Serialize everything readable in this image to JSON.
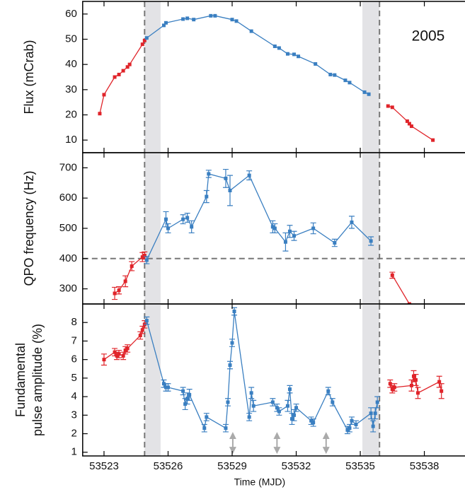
{
  "chart_data": [
    {
      "type": "line",
      "ylabel": [
        "Flux (mCrab)"
      ],
      "annotation": "2005",
      "xlim": [
        53522,
        53540
      ],
      "xticks": [
        53523,
        53526,
        53529,
        53532,
        53535,
        53538
      ],
      "ylim": [
        5,
        65
      ],
      "yticks": [
        10,
        20,
        30,
        40,
        50,
        60
      ],
      "dashed_x": [
        53524.9,
        53535.9
      ],
      "shaded": [
        [
          53524.9,
          53525.65
        ],
        [
          53535.1,
          53535.9
        ]
      ],
      "series": [
        {
          "color": "#e0242a",
          "x": [
            53522.8,
            53523,
            53523.5,
            53523.7,
            53523.9,
            53524.1,
            53524.2,
            53524.8,
            53524.9
          ],
          "values": [
            20.5,
            28,
            35,
            36,
            37.5,
            39,
            40,
            48,
            49.5
          ]
        },
        {
          "color": "#3a7fc1",
          "x": [
            53525,
            53525.8,
            53525.9,
            53526.7,
            53526.9,
            53527.2,
            53528,
            53528.2,
            53529,
            53529.2,
            53529.9,
            53531,
            53531.2,
            53531.6,
            53531.9,
            53532.1,
            53532.9,
            53533.6,
            53533.8,
            53534.3,
            53534.5,
            53535.2,
            53535.4
          ],
          "values": [
            50.5,
            55.5,
            56.5,
            58,
            58.3,
            57.8,
            59.3,
            59.3,
            57.8,
            57.2,
            53.2,
            47.2,
            46.5,
            44.2,
            44,
            43.2,
            40.2,
            36,
            35.8,
            33.7,
            32.8,
            29,
            28.2
          ]
        },
        {
          "color": "#e0242a",
          "x": [
            53536.3,
            53536.5,
            53537.2,
            53537.3,
            53537.4,
            53538.4
          ],
          "values": [
            23.5,
            23,
            17.5,
            16.5,
            15.5,
            10
          ]
        }
      ]
    },
    {
      "type": "line",
      "ylabel": [
        "QPO frequency (Hz)"
      ],
      "xlim": [
        53522,
        53540
      ],
      "xticks": [
        53523,
        53526,
        53529,
        53532,
        53535,
        53538
      ],
      "ylim": [
        250,
        750
      ],
      "yticks": [
        300,
        400,
        500,
        600,
        700
      ],
      "dashed_y": 400,
      "dashed_x": [
        53524.9,
        53535.9
      ],
      "shaded": [
        [
          53524.9,
          53525.65
        ],
        [
          53535.1,
          53535.9
        ]
      ],
      "series": [
        {
          "color": "#e0242a",
          "x": [
            53523.5,
            53523.7,
            53524,
            53524.3,
            53524.8,
            53524.9
          ],
          "values": [
            285,
            295,
            325,
            375,
            405,
            410
          ],
          "errors": [
            20,
            12,
            18,
            15,
            15,
            12
          ]
        },
        {
          "color": "#3a7fc1",
          "x": [
            53525,
            53525.9,
            53526,
            53526.7,
            53526.9,
            53527.1,
            53527.8,
            53527.9,
            53528.7,
            53528.9,
            53529.8,
            53530.9,
            53531,
            53531.5,
            53531.7,
            53531.9,
            53532.8,
            53533.8,
            53534.6,
            53535.5
          ],
          "values": [
            395,
            530,
            500,
            530,
            535,
            505,
            605,
            680,
            665,
            625,
            675,
            505,
            500,
            455,
            490,
            475,
            500,
            452,
            520,
            458
          ],
          "errors": [
            12,
            25,
            15,
            15,
            15,
            20,
            20,
            12,
            30,
            50,
            15,
            20,
            15,
            30,
            20,
            15,
            18,
            12,
            20,
            14
          ]
        },
        {
          "color": "#e0242a",
          "x": [
            53536.5,
            53537.3
          ],
          "values": [
            345,
            250
          ],
          "errors": [
            10,
            0
          ]
        }
      ]
    },
    {
      "type": "line",
      "ylabel": [
        "Fundamental",
        "pulse amplitude (%)"
      ],
      "xlabel": "Time (MJD)",
      "xlim": [
        53522,
        53540
      ],
      "xticks": [
        53523,
        53526,
        53529,
        53532,
        53535,
        53538
      ],
      "ylim": [
        0.8,
        9
      ],
      "yticks": [
        1,
        2,
        3,
        4,
        5,
        6,
        7,
        8
      ],
      "dashed_x": [
        53524.9,
        53535.9
      ],
      "shaded": [
        [
          53524.9,
          53525.65
        ],
        [
          53535.1,
          53535.9
        ]
      ],
      "arrows_x": [
        53529.03,
        53531.1,
        53533.4
      ],
      "arrow_span": [
        1.1,
        1.9
      ],
      "series": [
        {
          "color": "#e0242a",
          "x": [
            53523,
            53523.5,
            53523.6,
            53523.7,
            53523.9,
            53524,
            53524.1,
            53524.7,
            53524.8,
            53524.9
          ],
          "values": [
            6.0,
            6.4,
            6.2,
            6.3,
            6.2,
            6.5,
            6.6,
            7.3,
            7.6,
            7.9
          ],
          "errors": [
            0.3,
            0.2,
            0.2,
            0.2,
            0.2,
            0.2,
            0.2,
            0.2,
            0.2,
            0.2
          ]
        },
        {
          "color": "#3a7fc1",
          "x": [
            53525,
            53525.8,
            53525.9,
            53526,
            53526.7,
            53526.8,
            53526.9,
            53527,
            53527.7,
            53527.8,
            53528.7,
            53528.8,
            53528.9,
            53529,
            53529.1,
            53529.8,
            53529.9,
            53530,
            53530.9,
            53531.1,
            53531.2,
            53531.6,
            53531.7,
            53531.8,
            53531.9,
            53532,
            53532.7,
            53532.8,
            53533.5,
            53533.7,
            53534.4,
            53534.5,
            53534.6,
            53534.8,
            53535.5,
            53535.6,
            53535.7,
            53535.8
          ],
          "values": [
            8.1,
            4.7,
            4.5,
            4.5,
            4.3,
            3.6,
            3.9,
            4.1,
            2.3,
            2.9,
            2.3,
            3.7,
            5.7,
            6.9,
            8.6,
            2.9,
            4.2,
            3.5,
            3.7,
            3.4,
            3.2,
            3.5,
            4.4,
            2.8,
            3.0,
            3.4,
            2.7,
            2.6,
            4.3,
            3.7,
            2.2,
            2.3,
            2.7,
            2.5,
            3.1,
            2.4,
            3.1,
            3.7
          ],
          "errors": [
            0.2,
            0.2,
            0.2,
            0.2,
            0.2,
            0.3,
            0.3,
            0.3,
            0.2,
            0.2,
            0.2,
            0.2,
            0.2,
            0.2,
            0.2,
            0.2,
            0.3,
            0.3,
            0.2,
            0.2,
            0.2,
            0.3,
            0.2,
            0.3,
            0.3,
            0.2,
            0.2,
            0.2,
            0.2,
            0.2,
            0.2,
            0.2,
            0.2,
            0.2,
            0.3,
            0.3,
            0.3,
            0.3
          ]
        },
        {
          "color": "#e0242a",
          "x": [
            53536.4,
            53536.5,
            53536.6,
            53537.4,
            53537.5,
            53537.6,
            53537.7,
            53538.7,
            53538.8
          ],
          "values": [
            4.7,
            4.4,
            4.5,
            4.6,
            5.1,
            4.9,
            4.2,
            4.8,
            4.3
          ],
          "errors": [
            0.2,
            0.2,
            0.2,
            0.3,
            0.3,
            0.3,
            0.3,
            0.3,
            0.4
          ]
        }
      ]
    }
  ]
}
